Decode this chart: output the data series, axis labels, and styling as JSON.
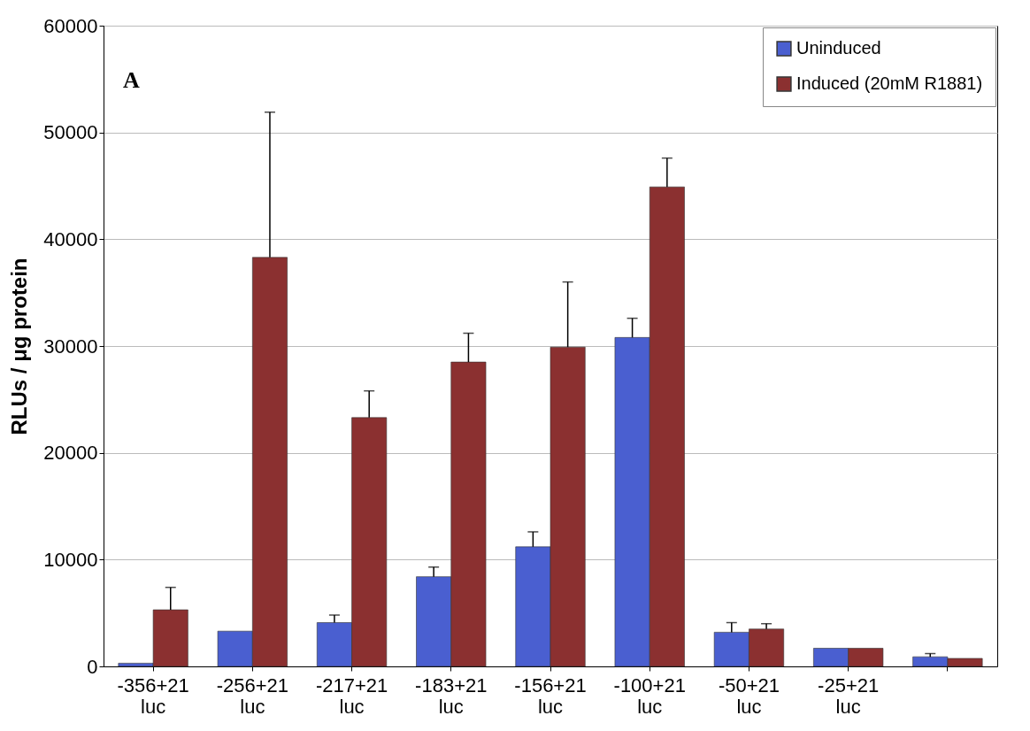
{
  "chart_data": {
    "type": "bar",
    "ylabel": "RLUs / μg protein",
    "annotations": [
      "A"
    ],
    "categories": [
      "-356+21 luc",
      "-256+21 luc",
      "-217+21 luc",
      "-183+21 luc",
      "-156+21 luc",
      "-100+21 luc",
      "-50+21 luc",
      "-25+21 luc",
      null
    ],
    "series": [
      {
        "name": "Uninduced",
        "color": "#4a5fd0",
        "values": [
          300,
          3300,
          4100,
          8400,
          11200,
          30800,
          3200,
          1700,
          900
        ],
        "errors": [
          null,
          null,
          [
            4100,
            4800
          ],
          [
            8400,
            9300
          ],
          [
            11200,
            12600
          ],
          [
            30800,
            32600
          ],
          [
            3200,
            4100
          ],
          null,
          [
            900,
            1200
          ]
        ]
      },
      {
        "name": "Induced (20mM R1881)",
        "color": "#8b3030",
        "values": [
          5300,
          38300,
          23300,
          28500,
          29900,
          44900,
          3500,
          1700,
          750
        ],
        "errors": [
          [
            5300,
            7400
          ],
          [
            38300,
            51900
          ],
          [
            23300,
            25800
          ],
          [
            28500,
            31200
          ],
          [
            29900,
            36000
          ],
          [
            44900,
            47600
          ],
          [
            3500,
            4000
          ],
          null,
          null
        ]
      }
    ],
    "ylim": [
      0,
      60000
    ],
    "yticks": [
      0,
      10000,
      20000,
      30000,
      40000,
      50000,
      60000
    ],
    "grid": "y",
    "legend": "top right"
  }
}
